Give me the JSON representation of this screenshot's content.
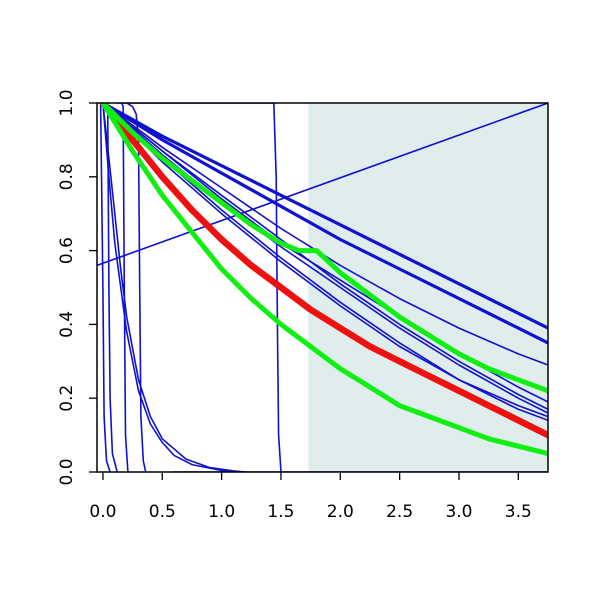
{
  "chart_data": {
    "type": "line",
    "title": "",
    "xlabel": "",
    "ylabel": "",
    "xlim": [
      -0.05,
      3.75
    ],
    "ylim": [
      0.0,
      1.0
    ],
    "x_ticks": [
      "0.0",
      "0.5",
      "1.0",
      "1.5",
      "2.0",
      "2.5",
      "3.0",
      "3.5"
    ],
    "y_ticks": [
      "0.0",
      "0.2",
      "0.4",
      "0.6",
      "0.8",
      "1.0"
    ],
    "grid": false,
    "legend": "none",
    "shaded_region": {
      "x_from": 1.73,
      "x_to": 3.75,
      "color": "#dfeded"
    },
    "colors": {
      "blue": "#1010d0",
      "red": "#ee1111",
      "green": "#11ee11",
      "axis": "#000000"
    },
    "series": [
      {
        "color": "blue",
        "width": 1.6,
        "points": [
          [
            -0.02,
            1.0
          ],
          [
            0.0,
            0.5
          ],
          [
            0.01,
            0.15
          ],
          [
            0.03,
            0.03
          ],
          [
            0.06,
            0.0
          ]
        ]
      },
      {
        "color": "blue",
        "width": 1.6,
        "points": [
          [
            0.04,
            1.0
          ],
          [
            0.05,
            0.5
          ],
          [
            0.06,
            0.2
          ],
          [
            0.08,
            0.05
          ],
          [
            0.12,
            0.0
          ]
        ]
      },
      {
        "color": "blue",
        "width": 1.6,
        "points": [
          [
            0.0,
            1.0
          ],
          [
            0.05,
            0.8
          ],
          [
            0.1,
            0.62
          ],
          [
            0.2,
            0.38
          ],
          [
            0.3,
            0.22
          ],
          [
            0.4,
            0.13
          ],
          [
            0.5,
            0.08
          ],
          [
            0.6,
            0.045
          ],
          [
            0.75,
            0.02
          ],
          [
            1.0,
            0.004
          ],
          [
            1.2,
            0.0
          ]
        ]
      },
      {
        "color": "blue",
        "width": 1.6,
        "points": [
          [
            0.0,
            1.0
          ],
          [
            0.05,
            0.85
          ],
          [
            0.1,
            0.7
          ],
          [
            0.15,
            0.55
          ],
          [
            0.2,
            0.42
          ],
          [
            0.3,
            0.25
          ],
          [
            0.4,
            0.15
          ],
          [
            0.5,
            0.09
          ],
          [
            0.7,
            0.035
          ],
          [
            0.9,
            0.012
          ],
          [
            1.1,
            0.003
          ],
          [
            1.2,
            0.0
          ]
        ]
      },
      {
        "color": "blue",
        "width": 1.6,
        "points": [
          [
            0.16,
            1.0
          ],
          [
            0.17,
            0.99
          ],
          [
            0.18,
            0.5
          ],
          [
            0.19,
            0.1
          ],
          [
            0.21,
            0.0
          ]
        ]
      },
      {
        "color": "blue",
        "width": 1.6,
        "points": [
          [
            0.2,
            1.0
          ],
          [
            0.25,
            0.99
          ],
          [
            0.28,
            0.97
          ],
          [
            0.3,
            0.9
          ],
          [
            0.31,
            0.5
          ],
          [
            0.32,
            0.15
          ],
          [
            0.34,
            0.03
          ],
          [
            0.36,
            0.0
          ]
        ]
      },
      {
        "color": "blue",
        "width": 1.6,
        "points": [
          [
            0.12,
            1.0
          ],
          [
            1.44,
            1.0
          ],
          [
            1.46,
            0.8
          ],
          [
            1.47,
            0.4
          ],
          [
            1.48,
            0.1
          ],
          [
            1.5,
            0.0
          ]
        ]
      },
      {
        "color": "blue",
        "width": 1.6,
        "points": [
          [
            0.6,
            0.0
          ],
          [
            3.75,
            0.0
          ]
        ]
      },
      {
        "color": "blue",
        "width": 1.6,
        "points": [
          [
            -0.05,
            0.56
          ],
          [
            3.75,
            1.0
          ]
        ]
      },
      {
        "color": "blue",
        "width": 3.2,
        "points": [
          [
            0.0,
            1.0
          ],
          [
            0.5,
            0.91
          ],
          [
            1.0,
            0.83
          ],
          [
            1.5,
            0.75
          ],
          [
            2.0,
            0.67
          ],
          [
            2.5,
            0.59
          ],
          [
            3.0,
            0.51
          ],
          [
            3.5,
            0.43
          ],
          [
            3.75,
            0.39
          ]
        ]
      },
      {
        "color": "blue",
        "width": 3.2,
        "points": [
          [
            0.0,
            1.0
          ],
          [
            0.5,
            0.9
          ],
          [
            1.0,
            0.81
          ],
          [
            1.5,
            0.72
          ],
          [
            2.0,
            0.63
          ],
          [
            2.5,
            0.55
          ],
          [
            3.0,
            0.47
          ],
          [
            3.5,
            0.39
          ],
          [
            3.75,
            0.35
          ]
        ]
      },
      {
        "color": "blue",
        "width": 1.6,
        "points": [
          [
            0.0,
            1.0
          ],
          [
            0.5,
            0.88
          ],
          [
            1.0,
            0.77
          ],
          [
            1.5,
            0.66
          ],
          [
            2.0,
            0.56
          ],
          [
            2.5,
            0.47
          ],
          [
            3.0,
            0.39
          ],
          [
            3.5,
            0.32
          ],
          [
            3.75,
            0.29
          ]
        ]
      },
      {
        "color": "blue",
        "width": 1.6,
        "points": [
          [
            0.0,
            1.0
          ],
          [
            0.5,
            0.87
          ],
          [
            1.0,
            0.75
          ],
          [
            1.5,
            0.63
          ],
          [
            2.0,
            0.51
          ],
          [
            2.5,
            0.4
          ],
          [
            3.0,
            0.3
          ],
          [
            3.5,
            0.21
          ],
          [
            3.75,
            0.17
          ]
        ]
      },
      {
        "color": "blue",
        "width": 1.6,
        "points": [
          [
            0.0,
            1.0
          ],
          [
            0.5,
            0.85
          ],
          [
            1.0,
            0.71
          ],
          [
            1.5,
            0.58
          ],
          [
            2.0,
            0.46
          ],
          [
            2.5,
            0.35
          ],
          [
            3.0,
            0.25
          ],
          [
            3.5,
            0.18
          ],
          [
            3.75,
            0.15
          ]
        ]
      },
      {
        "color": "blue",
        "width": 1.6,
        "points": [
          [
            0.0,
            1.0
          ],
          [
            0.5,
            0.84
          ],
          [
            1.0,
            0.7
          ],
          [
            1.5,
            0.57
          ],
          [
            2.0,
            0.45
          ],
          [
            2.5,
            0.34
          ],
          [
            3.0,
            0.25
          ],
          [
            3.5,
            0.17
          ],
          [
            3.75,
            0.14
          ]
        ]
      },
      {
        "color": "blue",
        "width": 1.6,
        "points": [
          [
            0.0,
            1.0
          ],
          [
            0.5,
            0.86
          ],
          [
            1.0,
            0.73
          ],
          [
            1.5,
            0.61
          ],
          [
            2.0,
            0.5
          ],
          [
            2.5,
            0.39
          ],
          [
            3.0,
            0.29
          ],
          [
            3.5,
            0.2
          ],
          [
            3.75,
            0.16
          ]
        ]
      },
      {
        "color": "blue",
        "width": 1.6,
        "points": [
          [
            0.0,
            1.0
          ],
          [
            0.5,
            0.87
          ],
          [
            1.0,
            0.74
          ],
          [
            1.5,
            0.62
          ],
          [
            2.0,
            0.52
          ],
          [
            2.5,
            0.42
          ],
          [
            3.0,
            0.32
          ],
          [
            3.5,
            0.23
          ],
          [
            3.75,
            0.19
          ]
        ]
      },
      {
        "color": "red",
        "width": 6.5,
        "points": [
          [
            0.0,
            1.0
          ],
          [
            0.25,
            0.9
          ],
          [
            0.5,
            0.8
          ],
          [
            0.75,
            0.71
          ],
          [
            1.0,
            0.63
          ],
          [
            1.25,
            0.56
          ],
          [
            1.5,
            0.5
          ],
          [
            1.75,
            0.44
          ],
          [
            2.0,
            0.39
          ],
          [
            2.25,
            0.34
          ],
          [
            2.5,
            0.3
          ],
          [
            2.75,
            0.26
          ],
          [
            3.0,
            0.22
          ],
          [
            3.25,
            0.18
          ],
          [
            3.5,
            0.14
          ],
          [
            3.75,
            0.1
          ]
        ]
      },
      {
        "color": "green",
        "width": 5.0,
        "points": [
          [
            0.0,
            1.0
          ],
          [
            0.25,
            0.87
          ],
          [
            0.5,
            0.75
          ],
          [
            0.75,
            0.65
          ],
          [
            1.0,
            0.55
          ],
          [
            1.25,
            0.47
          ],
          [
            1.5,
            0.4
          ],
          [
            1.75,
            0.34
          ],
          [
            2.0,
            0.28
          ],
          [
            2.25,
            0.23
          ],
          [
            2.5,
            0.18
          ],
          [
            2.75,
            0.15
          ],
          [
            3.0,
            0.12
          ],
          [
            3.25,
            0.09
          ],
          [
            3.5,
            0.07
          ],
          [
            3.75,
            0.05
          ]
        ]
      },
      {
        "color": "green",
        "width": 5.0,
        "points": [
          [
            0.0,
            1.0
          ],
          [
            0.25,
            0.92
          ],
          [
            0.5,
            0.85
          ],
          [
            0.75,
            0.79
          ],
          [
            1.0,
            0.73
          ],
          [
            1.25,
            0.67
          ],
          [
            1.5,
            0.62
          ],
          [
            1.65,
            0.6
          ],
          [
            1.8,
            0.6
          ],
          [
            2.0,
            0.54
          ],
          [
            2.25,
            0.48
          ],
          [
            2.5,
            0.42
          ],
          [
            2.75,
            0.37
          ],
          [
            3.0,
            0.32
          ],
          [
            3.25,
            0.28
          ],
          [
            3.5,
            0.25
          ],
          [
            3.75,
            0.22
          ]
        ]
      }
    ]
  }
}
